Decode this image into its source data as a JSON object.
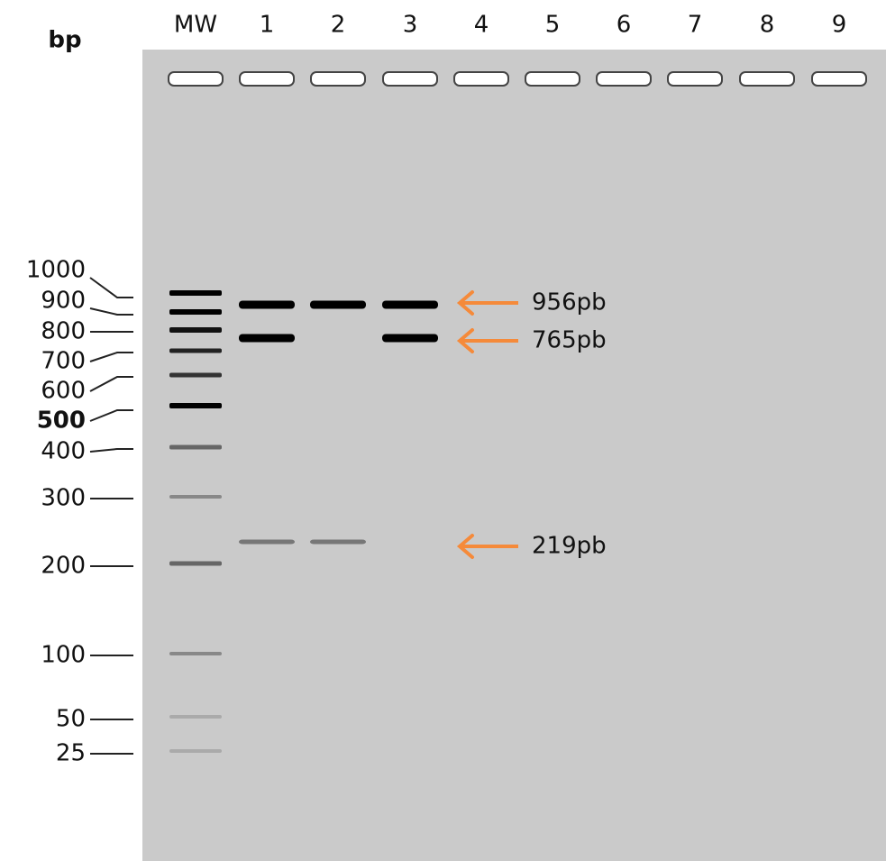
{
  "header": {
    "title": "bp"
  },
  "lanes": [
    "MW",
    "1",
    "2",
    "3",
    "4",
    "5",
    "6",
    "7",
    "8",
    "9"
  ],
  "ladder": [
    "1000",
    "900",
    "800",
    "700",
    "600",
    "500",
    "400",
    "300",
    "200",
    "100",
    "50",
    "25"
  ],
  "annotations": [
    "956pb",
    "765pb",
    "219pb"
  ]
}
